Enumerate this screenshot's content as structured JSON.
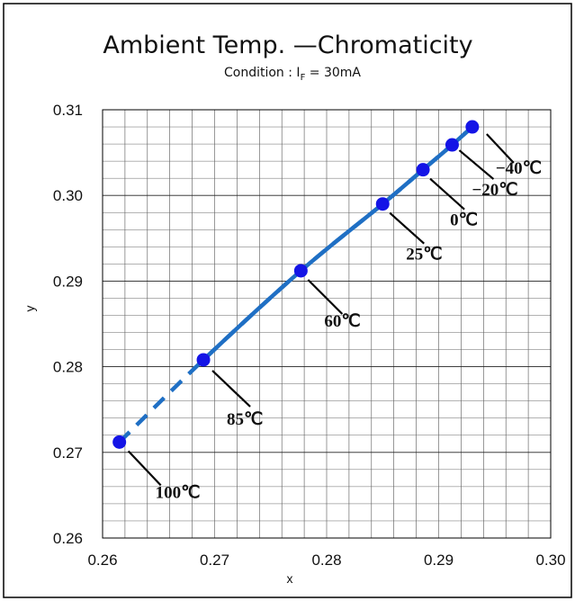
{
  "chart_data": {
    "type": "scatter",
    "title": "Ambient Temp. —Chromaticity",
    "subtitle": {
      "prefix": "Condition : I",
      "subscript": "F",
      "suffix": " = 30mA"
    },
    "xlabel": "x",
    "ylabel": "y",
    "xlim": [
      0.26,
      0.3
    ],
    "ylim": [
      0.26,
      0.31
    ],
    "x_ticks": [
      "0.26",
      "0.27",
      "0.28",
      "0.29",
      "0.30"
    ],
    "y_ticks": [
      "0.26",
      "0.27",
      "0.28",
      "0.29",
      "0.30",
      "0.31"
    ],
    "grid": true,
    "points": [
      {
        "label": "100℃",
        "x": 0.2615,
        "y": 0.2712
      },
      {
        "label": "85℃",
        "x": 0.269,
        "y": 0.2808
      },
      {
        "label": "60℃",
        "x": 0.2777,
        "y": 0.2912
      },
      {
        "label": "25℃",
        "x": 0.285,
        "y": 0.299
      },
      {
        "label": "0℃",
        "x": 0.2886,
        "y": 0.303
      },
      {
        "label": "−20℃",
        "x": 0.2912,
        "y": 0.3059
      },
      {
        "label": "−40℃",
        "x": 0.293,
        "y": 0.308
      }
    ],
    "colors": {
      "line": "#1f6fc4",
      "marker": "#1414e6"
    }
  }
}
